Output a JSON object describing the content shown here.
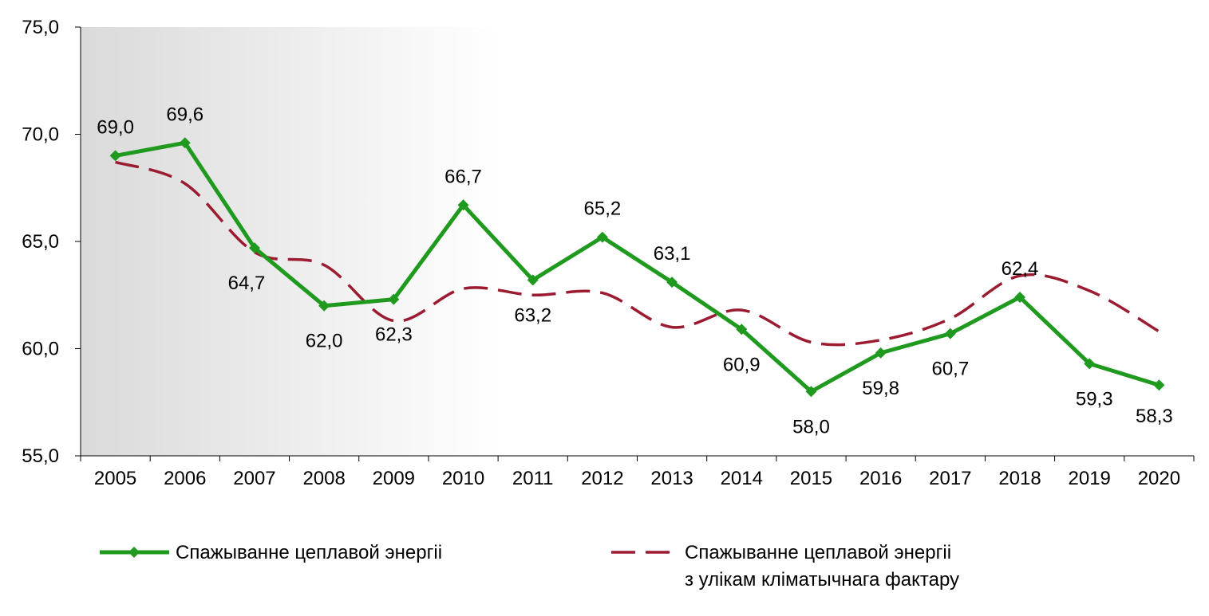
{
  "chart_data": {
    "type": "line",
    "categories": [
      "2005",
      "2006",
      "2007",
      "2008",
      "2009",
      "2010",
      "2011",
      "2012",
      "2013",
      "2014",
      "2015",
      "2016",
      "2017",
      "2018",
      "2019",
      "2020"
    ],
    "ylim": [
      55.0,
      75.0
    ],
    "yticks": [
      "55,0",
      "60,0",
      "65,0",
      "70,0",
      "75,0"
    ],
    "ytick_values": [
      55,
      60,
      65,
      70,
      75
    ],
    "grid": false,
    "shaded_region_end_category": "2010",
    "legend_position": "bottom",
    "series": [
      {
        "name": "Спажыванне цеплавой энергіі",
        "style": "solid-diamond",
        "color": "#1f9a1f",
        "values": [
          69.0,
          69.6,
          64.7,
          62.0,
          62.3,
          66.7,
          63.2,
          65.2,
          63.1,
          60.9,
          58.0,
          59.8,
          60.7,
          62.4,
          59.3,
          58.3
        ],
        "labels": [
          "69,0",
          "69,6",
          "64,7",
          "62,0",
          "62,3",
          "66,7",
          "63,2",
          "65,2",
          "63,1",
          "60,9",
          "58,0",
          "59,8",
          "60,7",
          "62,4",
          "59,3",
          "58,3"
        ]
      },
      {
        "name": "Спажыванне цеплавой энергіі з улікам кліматычнага фактару",
        "name_lines": [
          "Спажыванне цеплавой энергіі",
          "з улікам кліматычнага фактару"
        ],
        "style": "dashed-smooth",
        "color": "#9b1b30",
        "values": [
          68.7,
          67.7,
          64.5,
          63.9,
          61.3,
          62.8,
          62.5,
          62.6,
          61.0,
          61.8,
          60.3,
          60.4,
          61.4,
          63.4,
          62.7,
          60.8
        ]
      }
    ]
  }
}
